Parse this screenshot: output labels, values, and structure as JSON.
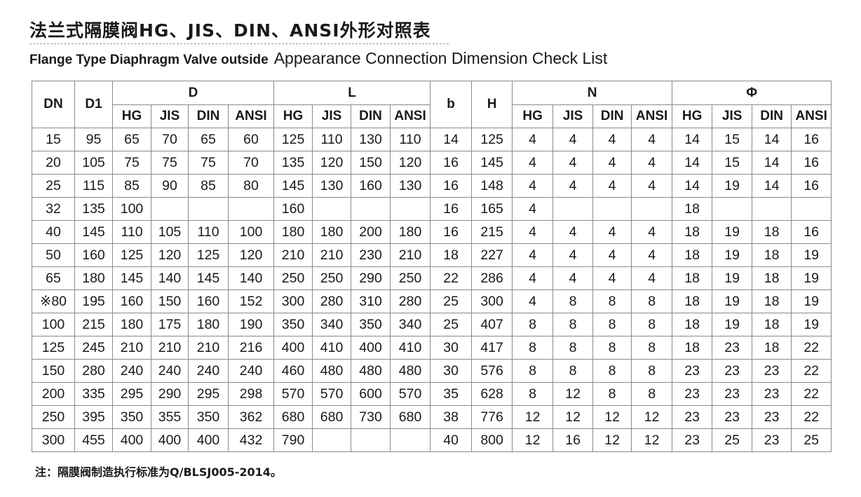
{
  "title": "法兰式隔膜阀HG、JIS、DIN、ANSI外形对照表",
  "subtitle_small": "Flange Type Diaphragm Valve outside",
  "subtitle_large": "Appearance Connection Dimension Check List",
  "table": {
    "group_headers": [
      "DN",
      "D1",
      "D",
      "L",
      "b",
      "H",
      "N",
      "Φ"
    ],
    "sub_headers": [
      "HG",
      "JIS",
      "DIN",
      "ANSI"
    ],
    "rows": [
      [
        "15",
        "95",
        "65",
        "70",
        "65",
        "60",
        "125",
        "110",
        "130",
        "110",
        "14",
        "125",
        "4",
        "4",
        "4",
        "4",
        "14",
        "15",
        "14",
        "16"
      ],
      [
        "20",
        "105",
        "75",
        "75",
        "75",
        "70",
        "135",
        "120",
        "150",
        "120",
        "16",
        "145",
        "4",
        "4",
        "4",
        "4",
        "14",
        "15",
        "14",
        "16"
      ],
      [
        "25",
        "115",
        "85",
        "90",
        "85",
        "80",
        "145",
        "130",
        "160",
        "130",
        "16",
        "148",
        "4",
        "4",
        "4",
        "4",
        "14",
        "19",
        "14",
        "16"
      ],
      [
        "32",
        "135",
        "100",
        "",
        "",
        "",
        "160",
        "",
        "",
        "",
        "16",
        "165",
        "4",
        "",
        "",
        "",
        "18",
        "",
        "",
        ""
      ],
      [
        "40",
        "145",
        "110",
        "105",
        "110",
        "100",
        "180",
        "180",
        "200",
        "180",
        "16",
        "215",
        "4",
        "4",
        "4",
        "4",
        "18",
        "19",
        "18",
        "16"
      ],
      [
        "50",
        "160",
        "125",
        "120",
        "125",
        "120",
        "210",
        "210",
        "230",
        "210",
        "18",
        "227",
        "4",
        "4",
        "4",
        "4",
        "18",
        "19",
        "18",
        "19"
      ],
      [
        "65",
        "180",
        "145",
        "140",
        "145",
        "140",
        "250",
        "250",
        "290",
        "250",
        "22",
        "286",
        "4",
        "4",
        "4",
        "4",
        "18",
        "19",
        "18",
        "19"
      ],
      [
        "※80",
        "195",
        "160",
        "150",
        "160",
        "152",
        "300",
        "280",
        "310",
        "280",
        "25",
        "300",
        "4",
        "8",
        "8",
        "8",
        "18",
        "19",
        "18",
        "19"
      ],
      [
        "100",
        "215",
        "180",
        "175",
        "180",
        "190",
        "350",
        "340",
        "350",
        "340",
        "25",
        "407",
        "8",
        "8",
        "8",
        "8",
        "18",
        "19",
        "18",
        "19"
      ],
      [
        "125",
        "245",
        "210",
        "210",
        "210",
        "216",
        "400",
        "410",
        "400",
        "410",
        "30",
        "417",
        "8",
        "8",
        "8",
        "8",
        "18",
        "23",
        "18",
        "22"
      ],
      [
        "150",
        "280",
        "240",
        "240",
        "240",
        "240",
        "460",
        "480",
        "480",
        "480",
        "30",
        "576",
        "8",
        "8",
        "8",
        "8",
        "23",
        "23",
        "23",
        "22"
      ],
      [
        "200",
        "335",
        "295",
        "290",
        "295",
        "298",
        "570",
        "570",
        "600",
        "570",
        "35",
        "628",
        "8",
        "12",
        "8",
        "8",
        "23",
        "23",
        "23",
        "22"
      ],
      [
        "250",
        "395",
        "350",
        "355",
        "350",
        "362",
        "680",
        "680",
        "730",
        "680",
        "38",
        "776",
        "12",
        "12",
        "12",
        "12",
        "23",
        "23",
        "23",
        "22"
      ],
      [
        "300",
        "455",
        "400",
        "400",
        "400",
        "432",
        "790",
        "",
        "",
        "",
        "40",
        "800",
        "12",
        "16",
        "12",
        "12",
        "23",
        "25",
        "23",
        "25"
      ]
    ]
  },
  "note": "注：隔膜阀制造执行标准为Q/BLSJ005-2014。"
}
